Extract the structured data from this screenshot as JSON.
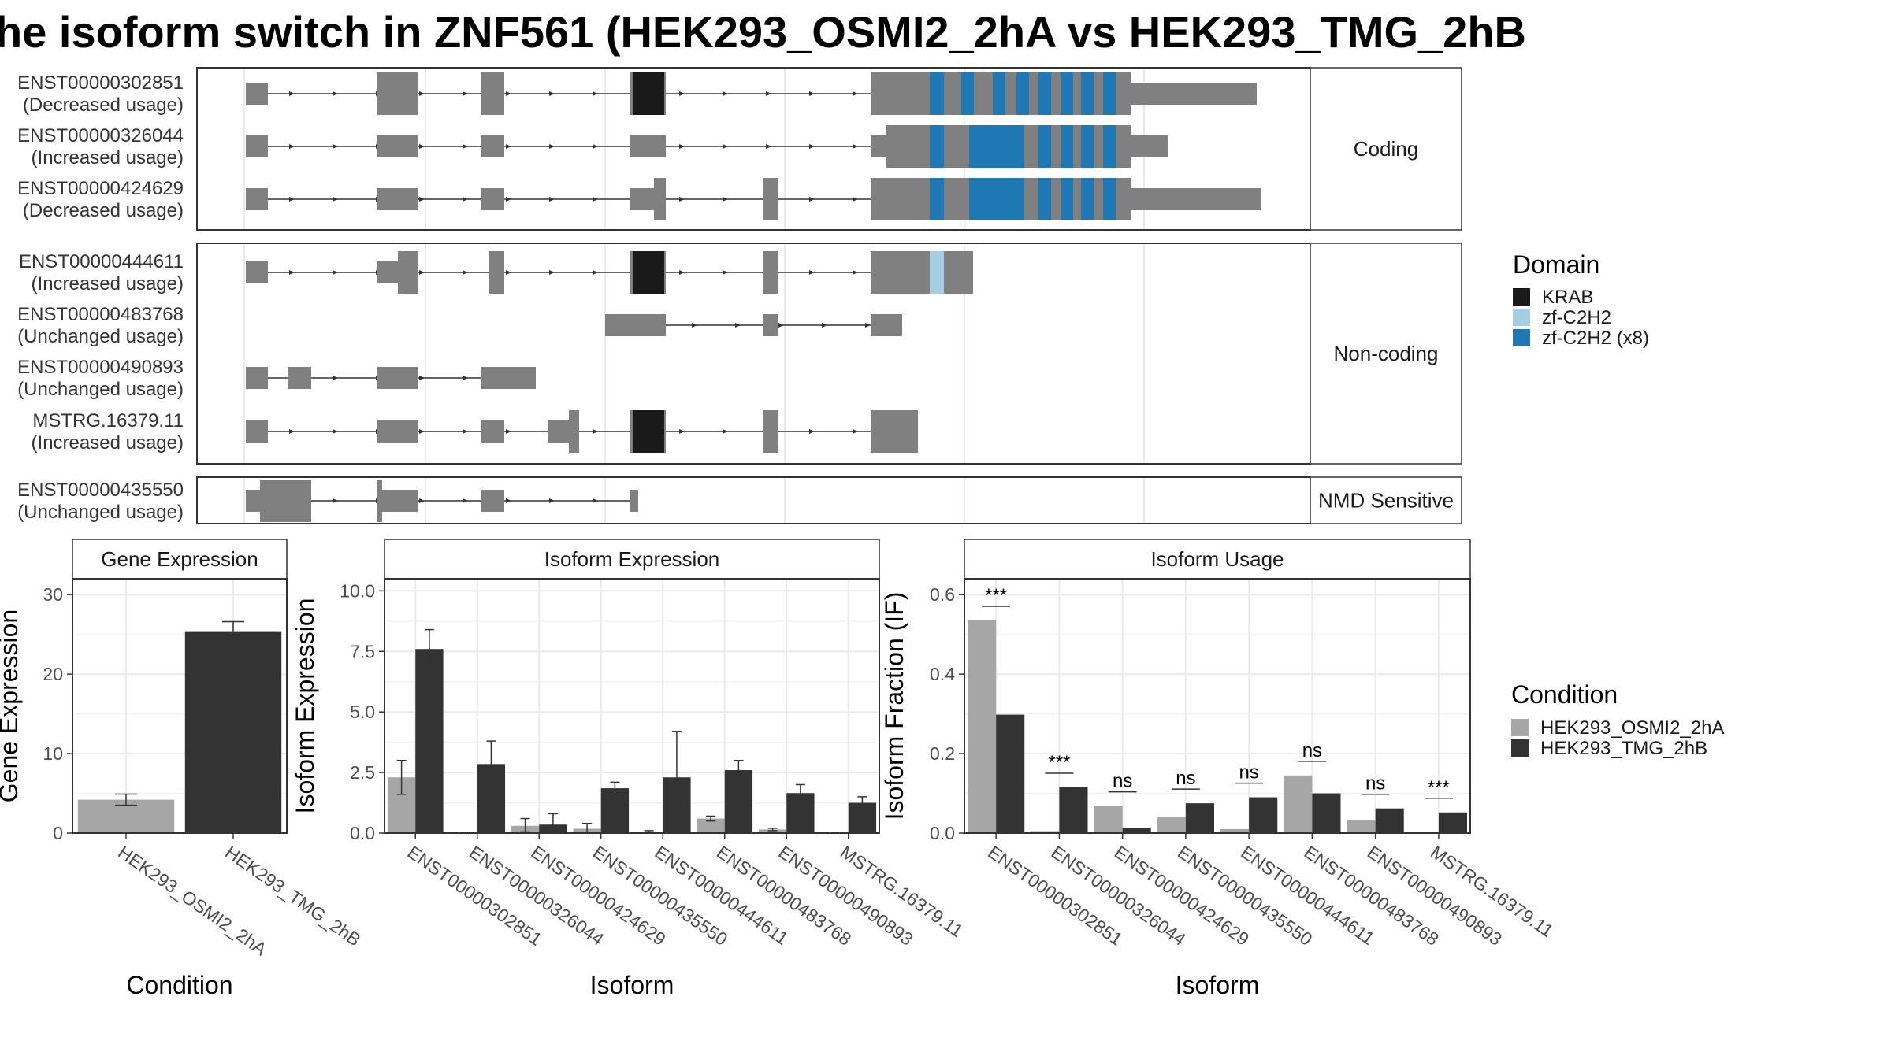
{
  "title": "he isoform switch in ZNF561 (HEK293_OSMI2_2hA vs HEK293_TMG_2hB",
  "colors": {
    "exon": "#808080",
    "krab": "#1a1a1a",
    "zf_single": "#a6cee3",
    "zf_multi": "#1f78b4",
    "cond_a": "#a6a6a6",
    "cond_b": "#333333"
  },
  "structure": {
    "groups": [
      {
        "label": "Coding",
        "transcripts": [
          {
            "id": "ENST00000302851",
            "usage": "(Decreased usage)"
          },
          {
            "id": "ENST00000326044",
            "usage": "(Increased usage)"
          },
          {
            "id": "ENST00000424629",
            "usage": "(Decreased usage)"
          }
        ]
      },
      {
        "label": "Non-coding",
        "transcripts": [
          {
            "id": "ENST00000444611",
            "usage": "(Increased usage)"
          },
          {
            "id": "ENST00000483768",
            "usage": "(Unchanged usage)"
          },
          {
            "id": "ENST00000490893",
            "usage": "(Unchanged usage)"
          },
          {
            "id": "MSTRG.16379.11",
            "usage": "(Increased usage)"
          }
        ]
      },
      {
        "label": "NMD Sensitive",
        "transcripts": [
          {
            "id": "ENST00000435550",
            "usage": "(Unchanged usage)"
          }
        ]
      }
    ]
  },
  "legend_domain": {
    "title": "Domain",
    "items": [
      {
        "label": "KRAB",
        "color": "#1a1a1a"
      },
      {
        "label": "zf-C2H2",
        "color": "#a6cee3"
      },
      {
        "label": "zf-C2H2 (x8)",
        "color": "#1f78b4"
      }
    ]
  },
  "legend_condition": {
    "title": "Condition",
    "items": [
      {
        "label": "HEK293_OSMI2_2hA",
        "color": "#a6a6a6"
      },
      {
        "label": "HEK293_TMG_2hB",
        "color": "#333333"
      }
    ]
  },
  "chart_data": [
    {
      "type": "bar",
      "strip": "Gene Expression",
      "xlabel": "Condition",
      "ylabel": "Gene Expression",
      "ylim": [
        0,
        32
      ],
      "yticks": [
        0,
        10,
        20,
        30
      ],
      "categories": [
        "HEK293_OSMI2_2hA",
        "HEK293_TMG_2hB"
      ],
      "values": [
        4.2,
        25.4
      ],
      "errors": [
        [
          3.5,
          4.9
        ],
        [
          24.2,
          26.6
        ]
      ]
    },
    {
      "type": "bar",
      "strip": "Isoform Expression",
      "xlabel": "Isoform",
      "ylabel": "Isoform Expression",
      "ylim": [
        0,
        10.5
      ],
      "yticks": [
        "0.0",
        "2.5",
        "5.0",
        "7.5",
        "10.0"
      ],
      "categories": [
        "ENST00000302851",
        "ENST00000326044",
        "ENST00000424629",
        "ENST00000435550",
        "ENST00000444611",
        "ENST00000483768",
        "ENST00000490893",
        "MSTRG.16379.11"
      ],
      "series": [
        {
          "name": "HEK293_OSMI2_2hA",
          "values": [
            2.3,
            0.02,
            0.3,
            0.18,
            0.05,
            0.6,
            0.15,
            0.02
          ],
          "errors": [
            [
              1.6,
              3.0
            ],
            [
              0.0,
              0.04
            ],
            [
              0.05,
              0.6
            ],
            [
              0.0,
              0.4
            ],
            [
              0.0,
              0.1
            ],
            [
              0.5,
              0.7
            ],
            [
              0.1,
              0.2
            ],
            [
              0.0,
              0.04
            ]
          ]
        },
        {
          "name": "HEK293_TMG_2hB",
          "values": [
            7.6,
            2.85,
            0.35,
            1.85,
            2.3,
            2.6,
            1.65,
            1.25
          ],
          "errors": [
            [
              6.8,
              8.4
            ],
            [
              2.0,
              3.8
            ],
            [
              0.0,
              0.8
            ],
            [
              1.6,
              2.1
            ],
            [
              0.4,
              4.2
            ],
            [
              2.2,
              3.0
            ],
            [
              1.3,
              2.0
            ],
            [
              1.0,
              1.5
            ]
          ]
        }
      ]
    },
    {
      "type": "bar",
      "strip": "Isoform Usage",
      "xlabel": "Isoform",
      "ylabel": "Isoform Fraction (IF)",
      "ylim": [
        0,
        0.64
      ],
      "yticks": [
        "0.0",
        "0.2",
        "0.4",
        "0.6"
      ],
      "categories": [
        "ENST00000302851",
        "ENST00000326044",
        "ENST00000424629",
        "ENST00000435550",
        "ENST00000444611",
        "ENST00000483768",
        "ENST00000490893",
        "MSTRG.16379.11"
      ],
      "series": [
        {
          "name": "HEK293_OSMI2_2hA",
          "values": [
            0.535,
            0.005,
            0.068,
            0.04,
            0.01,
            0.145,
            0.032,
            0.0
          ]
        },
        {
          "name": "HEK293_TMG_2hB",
          "values": [
            0.298,
            0.115,
            0.013,
            0.075,
            0.09,
            0.1,
            0.062,
            0.052
          ]
        }
      ],
      "significance": [
        "***",
        "***",
        "ns",
        "ns",
        "ns",
        "ns",
        "ns",
        "***"
      ]
    }
  ]
}
